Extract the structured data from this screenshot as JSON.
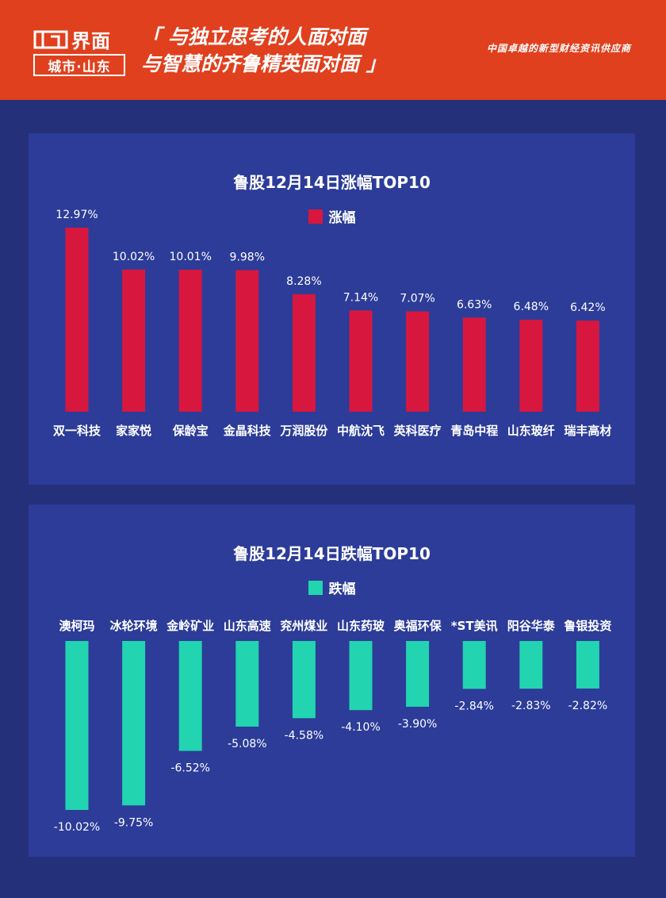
{
  "header": {
    "brand": "界面",
    "sub_brand": "城市·山东",
    "slogan_line1": "「 与独立思考的人面对面",
    "slogan_line2": "与智慧的齐鲁精英面对面 」",
    "tagline": "中国卓越的新型财经资讯供应商"
  },
  "colors": {
    "header_bg": "#e0401e",
    "page_bg": "#24307a",
    "panel_bg": "#2c3c98",
    "rise_bar": "#d8173f",
    "fall_bar": "#22d4b0"
  },
  "chart_data": [
    {
      "type": "bar",
      "title": "鲁股12月14日涨幅TOP10",
      "series": [
        {
          "name": "涨幅",
          "values": [
            12.97,
            10.02,
            10.01,
            9.98,
            8.28,
            7.14,
            7.07,
            6.63,
            6.48,
            6.42
          ],
          "labels": [
            "12.97%",
            "10.02%",
            "10.01%",
            "9.98%",
            "8.28%",
            "7.14%",
            "7.07%",
            "6.63%",
            "6.48%",
            "6.42%"
          ]
        }
      ],
      "categories": [
        "双一科技",
        "家家悦",
        "保龄宝",
        "金晶科技",
        "万润股份",
        "中航沈飞",
        "英科医疗",
        "青岛中程",
        "山东玻纤",
        "瑞丰高材"
      ],
      "ylim": [
        0,
        12.97
      ],
      "legend": "top-center",
      "grid": false
    },
    {
      "type": "bar",
      "title": "鲁股12月14日跌幅TOP10",
      "series": [
        {
          "name": "跌幅",
          "values": [
            -10.02,
            -9.75,
            -6.52,
            -5.08,
            -4.58,
            -4.1,
            -3.9,
            -2.84,
            -2.83,
            -2.82
          ],
          "labels": [
            "-10.02%",
            "-9.75%",
            "-6.52%",
            "-5.08%",
            "-4.58%",
            "-4.10%",
            "-3.90%",
            "-2.84%",
            "-2.83%",
            "-2.82%"
          ]
        }
      ],
      "categories": [
        "澳柯玛",
        "冰轮环境",
        "金岭矿业",
        "山东高速",
        "兖州煤业",
        "山东药玻",
        "奥福环保",
        "*ST美讯",
        "阳谷华泰",
        "鲁银投资"
      ],
      "ylim": [
        -10.02,
        0
      ],
      "legend": "top-center",
      "grid": false
    }
  ]
}
